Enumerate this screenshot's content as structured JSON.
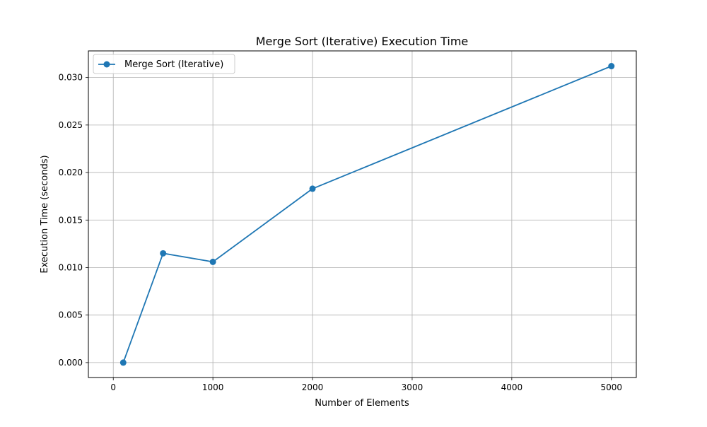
{
  "chart_data": {
    "type": "line",
    "title": "Merge Sort (Iterative) Execution Time",
    "xlabel": "Number of Elements",
    "ylabel": "Execution Time (seconds)",
    "xlim": [
      -250,
      5250
    ],
    "ylim": [
      -0.00157,
      0.0328
    ],
    "x_ticks": [
      0,
      1000,
      2000,
      3000,
      4000,
      5000
    ],
    "y_ticks": [
      0.0,
      0.005,
      0.01,
      0.015,
      0.02,
      0.025,
      0.03
    ],
    "x_tick_labels": [
      "0",
      "1000",
      "2000",
      "3000",
      "4000",
      "5000"
    ],
    "y_tick_labels": [
      "0.000",
      "0.005",
      "0.010",
      "0.015",
      "0.020",
      "0.025",
      "0.030"
    ],
    "grid": true,
    "legend": {
      "placement": "upper-left",
      "entries": [
        "Merge Sort (Iterative)"
      ]
    },
    "series": [
      {
        "name": "Merge Sort (Iterative)",
        "color": "#1f77b4",
        "marker": "circle",
        "x": [
          100,
          500,
          1000,
          2000,
          5000
        ],
        "y": [
          0.0,
          0.0115,
          0.0106,
          0.0183,
          0.0312
        ]
      }
    ]
  }
}
